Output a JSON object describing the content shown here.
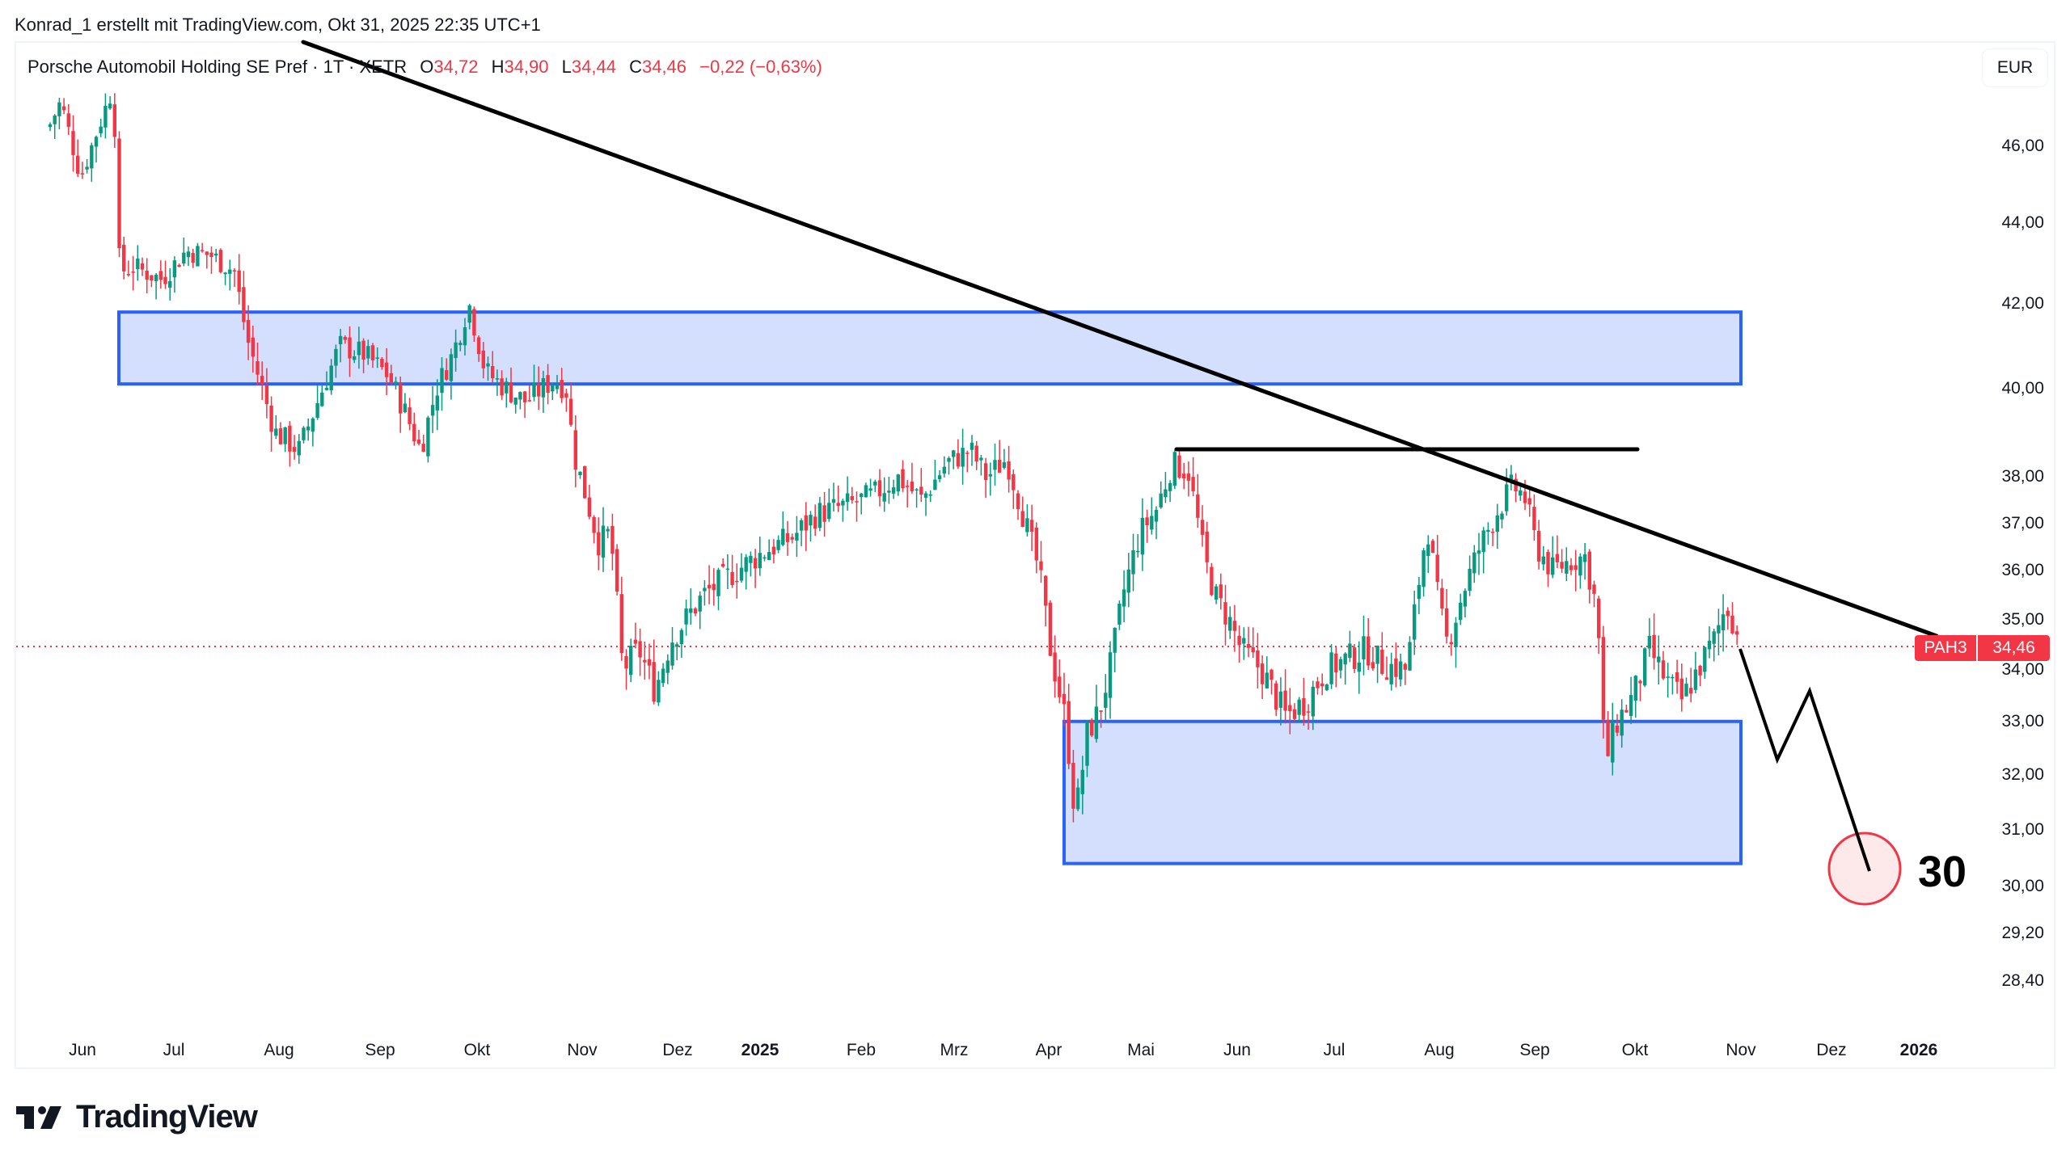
{
  "header": {
    "attribution": "Konrad_1 erstellt mit TradingView.com, Okt 31, 2025 22:35 UTC+1"
  },
  "legend": {
    "symbol_name": "Porsche Automobil Holding SE Pref · 1T · XETR",
    "open_key": "O",
    "open": "34,72",
    "high_key": "H",
    "high": "34,90",
    "low_key": "L",
    "low": "34,44",
    "close_key": "C",
    "close": "34,46",
    "change": "−0,22 (−0,63%)"
  },
  "currency_button": "EUR",
  "last_price_label": {
    "symbol": "PAH3",
    "price": "34,46"
  },
  "target_label": "30",
  "branding": {
    "logo_text": "TradingView"
  },
  "colors": {
    "up": "#089981",
    "down": "#f23645",
    "zone_fill": "#d4defd",
    "zone_border": "#2962ff",
    "drawing": "#000000",
    "target_circle_fill": "#fde8ea",
    "target_circle_border": "#f23645"
  },
  "chart_data": {
    "type": "candlestick",
    "title": "Porsche Automobil Holding SE Pref · 1T · XETR",
    "xlabel": "",
    "ylabel": "EUR",
    "y_scale": "log",
    "ylim": [
      27.8,
      48.0
    ],
    "grid": false,
    "y_ticks": [
      "46,00",
      "44,00",
      "42,00",
      "40,00",
      "38,00",
      "37,00",
      "36,00",
      "35,00",
      "34,00",
      "33,00",
      "32,00",
      "31,00",
      "30,00",
      "29,20",
      "28,40"
    ],
    "x_ticks": [
      {
        "label": "Jun",
        "bold": false
      },
      {
        "label": "Jul",
        "bold": false
      },
      {
        "label": "Aug",
        "bold": false
      },
      {
        "label": "Sep",
        "bold": false
      },
      {
        "label": "Okt",
        "bold": false
      },
      {
        "label": "Nov",
        "bold": false
      },
      {
        "label": "Dez",
        "bold": false
      },
      {
        "label": "2025",
        "bold": true
      },
      {
        "label": "Feb",
        "bold": false
      },
      {
        "label": "Mrz",
        "bold": false
      },
      {
        "label": "Apr",
        "bold": false
      },
      {
        "label": "Mai",
        "bold": false
      },
      {
        "label": "Jun",
        "bold": false
      },
      {
        "label": "Jul",
        "bold": false
      },
      {
        "label": "Aug",
        "bold": false
      },
      {
        "label": "Sep",
        "bold": false
      },
      {
        "label": "Okt",
        "bold": false
      },
      {
        "label": "Nov",
        "bold": false
      },
      {
        "label": "Dez",
        "bold": false
      },
      {
        "label": "2026",
        "bold": true
      }
    ],
    "last_close": 34.46,
    "approx_close_path_monthly": [
      {
        "month": "Jun 2024",
        "close": 47.0
      },
      {
        "month": "Jul 2024",
        "close": 43.0
      },
      {
        "month": "Aug 2024",
        "close": 38.6
      },
      {
        "month": "Sep 2024",
        "close": 40.5
      },
      {
        "month": "Okt 2024",
        "close": 40.2
      },
      {
        "month": "Nov 2024",
        "close": 34.8
      },
      {
        "month": "Dez 2024",
        "close": 34.3
      },
      {
        "month": "Jan 2025",
        "close": 36.0
      },
      {
        "month": "Feb 2025",
        "close": 37.3
      },
      {
        "month": "Mrz 2025",
        "close": 38.0
      },
      {
        "month": "Apr 2025",
        "close": 32.0
      },
      {
        "month": "Mai 2025",
        "close": 37.8
      },
      {
        "month": "Jun 2025",
        "close": 34.2
      },
      {
        "month": "Jul 2025",
        "close": 33.8
      },
      {
        "month": "Aug 2025",
        "close": 37.0
      },
      {
        "month": "Sep 2025",
        "close": 35.5
      },
      {
        "month": "Okt 2025",
        "close": 34.46
      }
    ],
    "annotations": [
      {
        "type": "rectangle",
        "name": "upper-resistance-zone",
        "price_top": 41.8,
        "price_bottom": 40.1,
        "from": "Jun 2024",
        "to": "Nov 2025"
      },
      {
        "type": "rectangle",
        "name": "lower-support-zone",
        "price_top": 33.0,
        "price_bottom": 30.4,
        "from": "Apr 2025",
        "to": "Nov 2025"
      },
      {
        "type": "trendline",
        "name": "descending-trendline",
        "start_price": 48.5,
        "start": "Aug 2024",
        "end_price": 34.9,
        "end": "Dez 2025"
      },
      {
        "type": "horizontal_segment",
        "name": "resistance-line",
        "price": 38.5,
        "from": "Mai 2025",
        "to": "Okt 2025"
      },
      {
        "type": "path",
        "name": "projection-path",
        "points": [
          34.46,
          32.3,
          33.6,
          30.2
        ]
      },
      {
        "type": "circle",
        "name": "target-circle",
        "price": 30.0,
        "label": "30"
      }
    ]
  }
}
